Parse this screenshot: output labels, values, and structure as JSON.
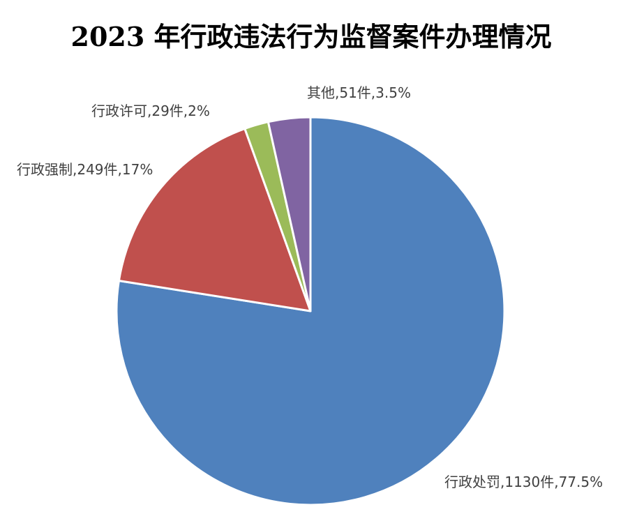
{
  "chart_data": {
    "type": "pie",
    "title": "2023 年行政违法行为监督案件办理情况",
    "start_angle_deg": 0,
    "direction": "clockwise",
    "slices": [
      {
        "name": "行政处罚",
        "value": 1130,
        "percent": 77.5,
        "label": "行政处罚,1130件,77.5%",
        "color": "#4F81BD"
      },
      {
        "name": "行政强制",
        "value": 249,
        "percent": 17,
        "label": "行政强制,249件,17%",
        "color": "#C0504D"
      },
      {
        "name": "行政许可",
        "value": 29,
        "percent": 2,
        "label": "行政许可,29件,2%",
        "color": "#9BBB59"
      },
      {
        "name": "其他",
        "value": 51,
        "percent": 3.5,
        "label": "其他,51件,3.5%",
        "color": "#8064A2"
      }
    ]
  }
}
